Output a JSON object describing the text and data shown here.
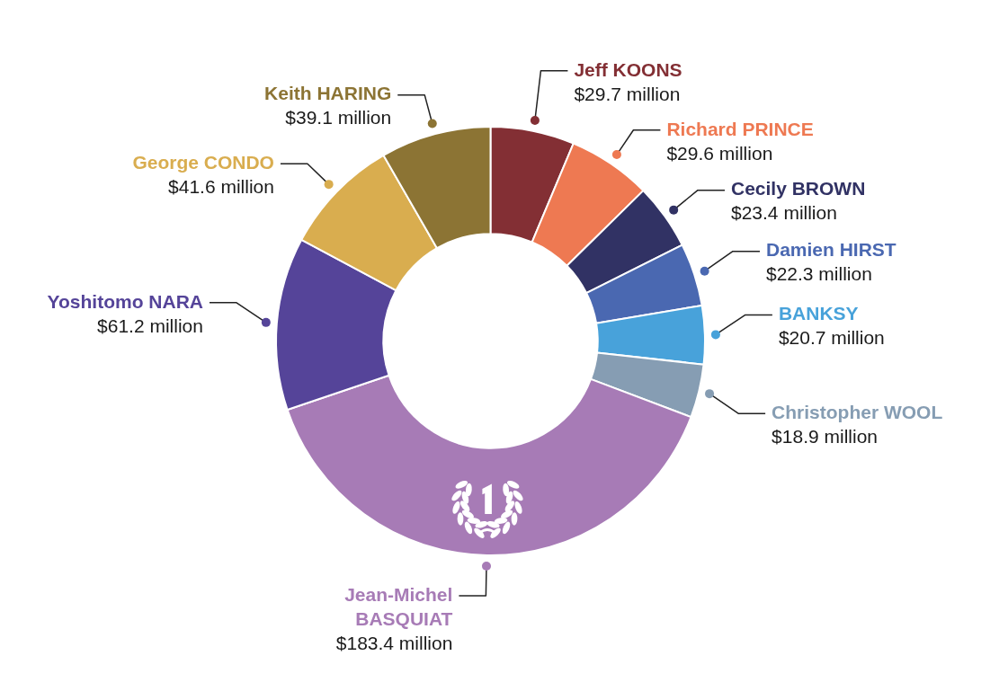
{
  "chart_data": {
    "type": "donut",
    "categories": [
      "Jeff KOONS",
      "Richard PRINCE",
      "Cecily BROWN",
      "Damien HIRST",
      "BANKSY",
      "Christopher WOOL",
      "Jean-Michel BASQUIAT",
      "Yoshitomo NARA",
      "George CONDO",
      "Keith HARING"
    ],
    "values": [
      29.7,
      29.6,
      23.4,
      22.3,
      20.7,
      18.9,
      183.4,
      61.2,
      41.6,
      39.1
    ],
    "colors": [
      "#832f34",
      "#ee7952",
      "#313264",
      "#4a68b1",
      "#48a2da",
      "#869db3",
      "#a77bb6",
      "#554499",
      "#d9ad4f",
      "#8c7434"
    ],
    "value_labels": [
      "$29.7 million",
      "$29.6 million",
      "$23.4 million",
      "$22.3 million",
      "$20.7 million",
      "$18.9 million",
      "$183.4 million",
      "$61.2 million",
      "$41.6 million",
      "$39.1 million"
    ]
  }
}
